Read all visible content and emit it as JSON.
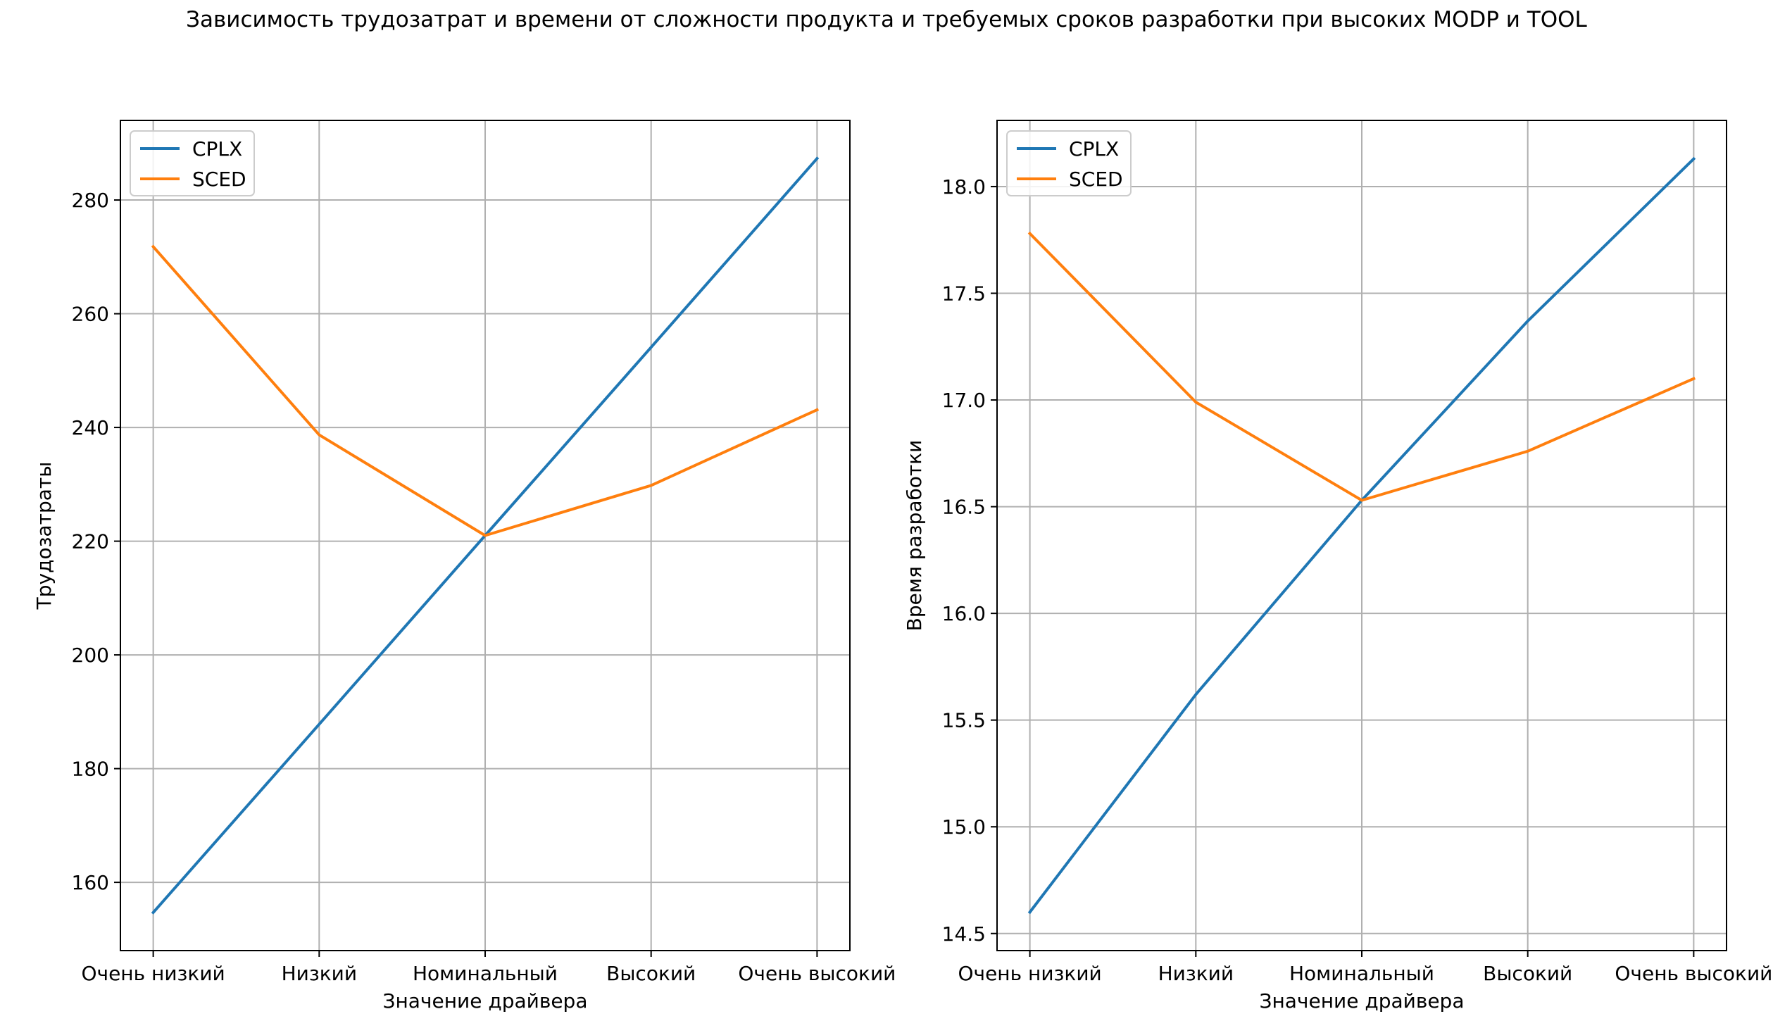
{
  "figure": {
    "title": "Зависимость трудозатрат и времени от сложности продукта и требуемых сроков разработки при высоких MODP и TOOL"
  },
  "chart_data": [
    {
      "type": "line",
      "categories": [
        "Очень низкий",
        "Низкий",
        "Номинальный",
        "Высокий",
        "Очень высокий"
      ],
      "xlabel": "Значение драйвера",
      "ylabel": "Трудозатраты",
      "ylim": [
        148,
        294
      ],
      "yticks": [
        160,
        180,
        200,
        220,
        240,
        260,
        280
      ],
      "grid": true,
      "legend_position": "upper-left",
      "series": [
        {
          "name": "CPLX",
          "color": "#1f77b4",
          "values": [
            154.7,
            187.8,
            221.0,
            254.1,
            287.3
          ]
        },
        {
          "name": "SCED",
          "color": "#ff7f0e",
          "values": [
            271.8,
            238.7,
            221.0,
            229.8,
            243.1
          ]
        }
      ]
    },
    {
      "type": "line",
      "categories": [
        "Очень низкий",
        "Низкий",
        "Номинальный",
        "Высокий",
        "Очень высокий"
      ],
      "xlabel": "Значение драйвера",
      "ylabel": "Время разработки",
      "ylim": [
        14.42,
        18.31
      ],
      "yticks": [
        "14.5",
        "15.0",
        "15.5",
        "16.0",
        "16.5",
        "17.0",
        "17.5",
        "18.0"
      ],
      "grid": true,
      "legend_position": "upper-left",
      "series": [
        {
          "name": "CPLX",
          "color": "#1f77b4",
          "values": [
            14.6,
            15.62,
            16.53,
            17.37,
            18.13
          ]
        },
        {
          "name": "SCED",
          "color": "#ff7f0e",
          "values": [
            17.78,
            16.99,
            16.53,
            16.76,
            17.1
          ]
        }
      ]
    }
  ]
}
